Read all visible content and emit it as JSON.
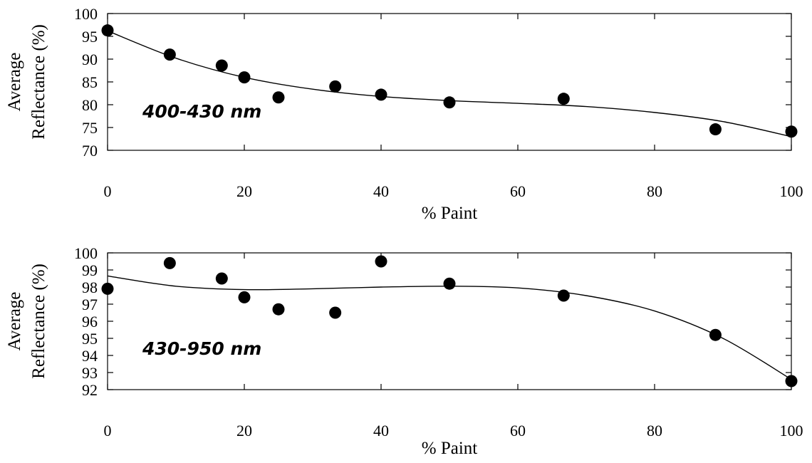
{
  "chart_data": [
    {
      "type": "scatter",
      "title": "",
      "annotation": "400-430 nm",
      "xlabel": "% Paint",
      "ylabel_lines": [
        "Average",
        "Reflectance (%)"
      ],
      "xlim": [
        0,
        100
      ],
      "ylim": [
        70,
        100
      ],
      "xticks": [
        0,
        20,
        40,
        60,
        80,
        100
      ],
      "yticks": [
        70,
        75,
        80,
        85,
        90,
        95,
        100
      ],
      "grid": false,
      "series": [
        {
          "x": [
            0,
            9.1,
            16.7,
            20,
            25,
            33.3,
            40,
            50,
            66.7,
            88.9,
            100
          ],
          "y": [
            96.3,
            91.0,
            88.6,
            86.0,
            81.6,
            84.0,
            82.2,
            80.5,
            81.3,
            74.6,
            74.1
          ]
        }
      ],
      "fit_curve": {
        "x": [
          0,
          10,
          20,
          30,
          40,
          50,
          60,
          70,
          80,
          90,
          100
        ],
        "y": [
          96.2,
          90.2,
          86.0,
          83.4,
          81.8,
          80.9,
          80.3,
          79.6,
          78.3,
          76.3,
          73.0
        ]
      }
    },
    {
      "type": "scatter",
      "title": "",
      "annotation": "430-950 nm",
      "xlabel": "% Paint",
      "ylabel_lines": [
        "Average",
        "Reflectance (%)"
      ],
      "xlim": [
        0,
        100
      ],
      "ylim": [
        92,
        100
      ],
      "xticks": [
        0,
        20,
        40,
        60,
        80,
        100
      ],
      "yticks": [
        92,
        93,
        94,
        95,
        96,
        97,
        98,
        99,
        100
      ],
      "grid": false,
      "series": [
        {
          "x": [
            0,
            9.1,
            16.7,
            20,
            25,
            33.3,
            40,
            50,
            66.7,
            88.9,
            100
          ],
          "y": [
            97.9,
            99.4,
            98.5,
            97.4,
            96.7,
            96.5,
            99.5,
            98.2,
            97.5,
            95.2,
            92.5
          ]
        }
      ],
      "fit_curve": {
        "x": [
          0,
          10,
          20,
          30,
          40,
          50,
          60,
          70,
          80,
          90,
          100
        ],
        "y": [
          98.65,
          98.05,
          97.85,
          97.9,
          98.0,
          98.05,
          97.95,
          97.5,
          96.6,
          95.0,
          92.6
        ]
      }
    }
  ]
}
